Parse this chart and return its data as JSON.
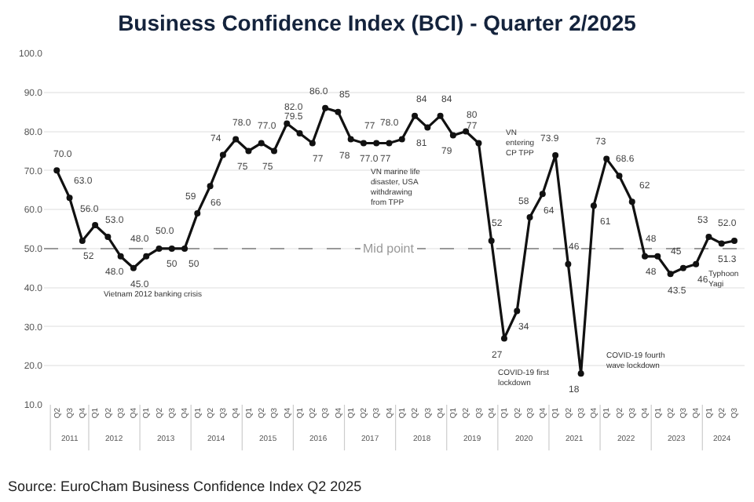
{
  "chart_data": {
    "type": "line",
    "title": "Business Confidence Index (BCI) - Quarter 2/2025",
    "categories": [
      "Q2",
      "Q3",
      "Q4",
      "Q1",
      "Q2",
      "Q3",
      "Q4",
      "Q1",
      "Q2",
      "Q3",
      "Q4",
      "Q1",
      "Q2",
      "Q3",
      "Q4",
      "Q1",
      "Q2",
      "Q3",
      "Q4",
      "Q1",
      "Q2",
      "Q3",
      "Q4",
      "Q1",
      "Q2",
      "Q3",
      "Q4",
      "Q1",
      "Q2",
      "Q3",
      "Q4",
      "Q1",
      "Q2",
      "Q3",
      "Q4",
      "Q1",
      "Q2",
      "Q3",
      "Q4",
      "Q1",
      "Q2",
      "Q3",
      "Q4",
      "Q1",
      "Q2",
      "Q3",
      "Q4",
      "Q1",
      "Q2",
      "Q3",
      "Q4",
      "Q1",
      "Q2",
      "Q3"
    ],
    "series": [
      {
        "color": "#111111",
        "values": [
          70.0,
          63.0,
          52,
          56.0,
          53.0,
          48.0,
          45.0,
          48.0,
          50.0,
          50,
          50,
          59,
          66,
          74,
          78.0,
          75,
          77.0,
          75,
          82.0,
          79.5,
          77,
          86.0,
          85,
          78,
          77.0,
          77,
          77,
          78.0,
          84,
          81,
          84,
          79,
          80,
          77,
          52,
          27,
          34,
          58,
          64,
          73.9,
          46,
          18,
          61,
          73,
          68.6,
          62,
          48,
          48,
          43.5,
          45,
          46,
          53,
          51.3,
          52.0
        ],
        "value_labels": [
          "70.0",
          "63.0",
          "52",
          "56.0",
          "53.0",
          "48.0",
          "45.0",
          "48.0",
          "50.0",
          "50",
          "50",
          "59",
          "66",
          "74",
          "78.0",
          "75",
          "77.0",
          "75",
          "82.0",
          "79.5",
          "77",
          "86.0",
          "85",
          "78",
          "77.0",
          "77",
          "77",
          "78.0",
          "84",
          "81",
          "84",
          "79",
          "80",
          "77",
          "52",
          "27",
          "34",
          "58",
          "64",
          "73.9",
          "46",
          "18",
          "61",
          "73",
          "68.6",
          "62",
          "48",
          "48",
          "43.5",
          "45",
          "46",
          "53",
          "51.3",
          "52.0"
        ]
      }
    ],
    "ylim": [
      10,
      100
    ],
    "yticks": [
      {
        "value": 10,
        "label": "10.0"
      },
      {
        "value": 20,
        "label": "20.0"
      },
      {
        "value": 30,
        "label": "30.0"
      },
      {
        "value": 40,
        "label": "40.0"
      },
      {
        "value": 50,
        "label": "50.0"
      },
      {
        "value": 60,
        "label": "60.0"
      },
      {
        "value": 70,
        "label": "70.0"
      },
      {
        "value": 80,
        "label": "80.0"
      },
      {
        "value": 90,
        "label": "90.0"
      },
      {
        "value": 100,
        "label": "100.0"
      }
    ],
    "grid": "y",
    "marker": "circle",
    "line_style": "solid",
    "ref_lines": [
      {
        "axis": "y",
        "value": 50,
        "label": "Mid point",
        "color": "#999999",
        "line_style": "dashed"
      }
    ],
    "annotations": [
      "2011",
      "2012",
      "2013",
      "2014",
      "2015",
      "2016",
      "2017",
      "2018",
      "2019",
      "2020",
      "2021",
      "2022",
      "2023",
      "2024",
      "Vietnam 2012 banking crisis",
      "VN marine life disaster, USA withdrawing from TPP",
      "VN entering CP TPP",
      "COVID-19 first lockdown",
      "COVID-19 fourth wave lockdown",
      "Typhoon Yagi",
      "Source: EuroCham Business Confidence Index Q2 2025"
    ]
  }
}
